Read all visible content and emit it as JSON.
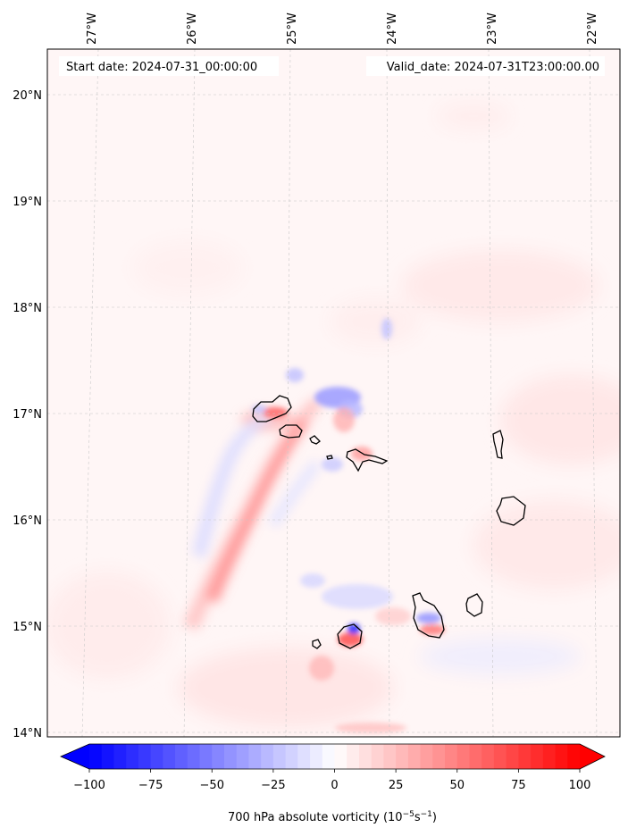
{
  "header": {
    "start_date": "Start date: 2024-07-31_00:00:00",
    "valid_date": "Valid_date: 2024-07-31T23:00:00.00"
  },
  "map": {
    "lon_labels": [
      "27°W",
      "26°W",
      "25°W",
      "24°W",
      "23°W",
      "22°W"
    ],
    "lat_labels": [
      "20°N",
      "19°N",
      "18°N",
      "17°N",
      "16°N",
      "15°N",
      "14°N"
    ],
    "gridlines": true
  },
  "colorbar": {
    "ticks": [
      "−100",
      "−75",
      "−50",
      "−25",
      "0",
      "25",
      "50",
      "75",
      "100"
    ],
    "label_main": "700 hPa absolute vorticity (10",
    "label_exp1": "−5",
    "label_mid": "s",
    "label_exp2": "−1",
    "label_end": ")",
    "extend": "both",
    "colormap": "bwr",
    "color_min": "#0000ff",
    "color_mid": "#ffffff",
    "color_max": "#ff0000"
  }
}
